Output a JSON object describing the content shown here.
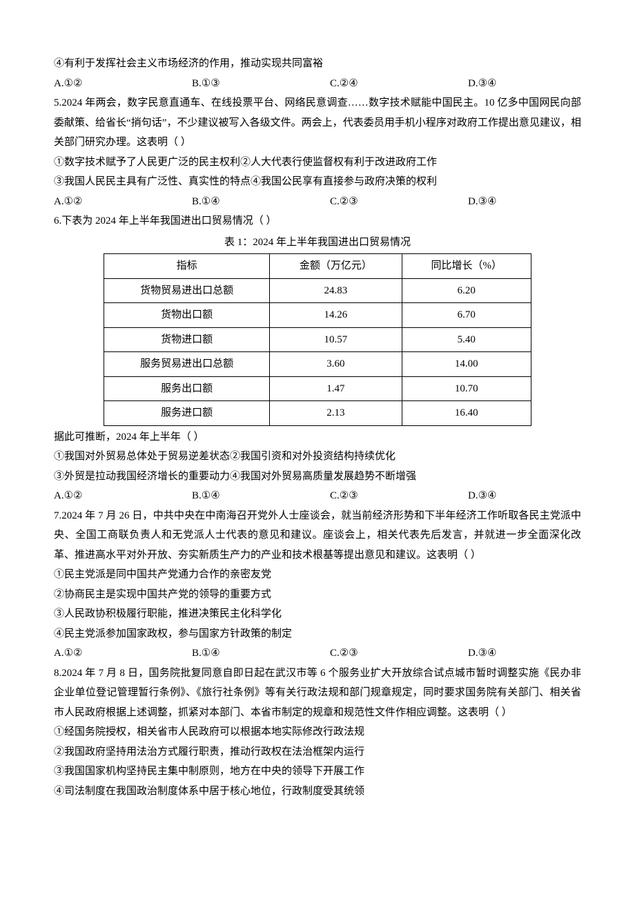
{
  "q4": {
    "opt4": "④有利于发挥社会主义市场经济的作用，推动实现共同富裕",
    "A": "A.①②",
    "B": "B.①③",
    "C": "C.②④",
    "D": "D.③④"
  },
  "q5": {
    "stem1": "5.2024 年两会，数字民意直通车、在线投票平台、网络民意调查……数字技术赋能中国民主。10 亿多中国网民向部委献策、给省长“捎句话”，不少建议被写入各级文件。两会上，代表委员用手机小程序对政府工作提出意见建议，相关部门研究办理。这表明（    ）",
    "opt12": "①数字技术赋予了人民更广泛的民主权利②人大代表行使监督权有利于改进政府工作",
    "opt34": "③我国人民民主具有广泛性、真实性的特点④我国公民享有直接参与政府决策的权利",
    "A": "A.①②",
    "B": "B.①④",
    "C": "C.②③",
    "D": "D.③④"
  },
  "q6": {
    "stem": "6.下表为 2024 年上半年我国进出口贸易情况（    ）",
    "tableTitle": "表 1：2024 年上半年我国进出口贸易情况",
    "cols": [
      "指标",
      "金额（万亿元）",
      "同比增长（%）"
    ],
    "rows": [
      [
        "货物贸易进出口总额",
        "24.83",
        "6.20"
      ],
      [
        "货物出口额",
        "14.26",
        "6.70"
      ],
      [
        "货物进口额",
        "10.57",
        "5.40"
      ],
      [
        "服务贸易进出口总额",
        "3.60",
        "14.00"
      ],
      [
        "服务出口额",
        "1.47",
        "10.70"
      ],
      [
        "服务进口额",
        "2.13",
        "16.40"
      ]
    ],
    "after": "据此可推断，2024 年上半年（    ）",
    "opt12": "①我国对外贸易总体处于贸易逆差状态②我国引资和对外投资结构持续优化",
    "opt34": "③外贸是拉动我国经济增长的重要动力④我国对外贸易高质量发展趋势不断增强",
    "A": "A.①②",
    "B": "B.①④",
    "C": "C.②③",
    "D": "D.③④"
  },
  "q7": {
    "stem": "7.2024 年 7 月 26 日，中共中央在中南海召开党外人士座谈会，就当前经济形势和下半年经济工作听取各民主党派中央、全国工商联负责人和无党派人士代表的意见和建议。座谈会上，相关代表先后发言，并就进一步全面深化改革、推进高水平对外开放、夯实新质生产力的产业和技术根基等提出意见和建议。这表明（    ）",
    "opt1": "①民主党派是同中国共产党通力合作的亲密友党",
    "opt2": "②协商民主是实现中国共产党的领导的重要方式",
    "opt3": "③人民政协积极履行职能，推进决策民主化科学化",
    "opt4": "④民主党派参加国家政权，参与国家方针政策的制定",
    "A": "A.①②",
    "B": "B.①④",
    "C": "C.②③",
    "D": "D.③④"
  },
  "q8": {
    "stem": "8.2024 年 7 月 8 日，国务院批复同意自即日起在武汉市等 6 个服务业扩大开放综合试点城市暂时调整实施《民办非企业单位登记管理暂行条例》、《旅行社条例》等有关行政法规和部门规章规定，同时要求国务院有关部门、相关省市人民政府根据上述调整，抓紧对本部门、本省市制定的规章和规范性文件作相应调整。这表明（    ）",
    "opt1": "①经国务院授权，相关省市人民政府可以根据本地实际修改行政法规",
    "opt2": "②我国政府坚持用法治方式履行职责，推动行政权在法治框架内运行",
    "opt3": "③我国国家机构坚持民主集中制原则，地方在中央的领导下开展工作",
    "opt4": "④司法制度在我国政治制度体系中居于核心地位，行政制度受其统领"
  },
  "tableStyle": {
    "colWidths": [
      "220px",
      "200px",
      "200px"
    ],
    "borderColor": "#000000",
    "background": "#ffffff"
  }
}
